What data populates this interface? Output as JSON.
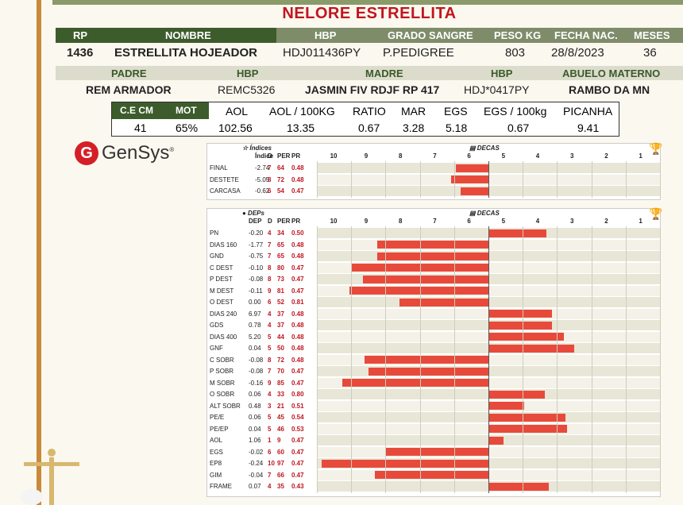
{
  "title": "NELORE ESTRELLITA",
  "main_header": [
    "RP",
    "NOMBRE",
    "HBP",
    "GRADO SANGRE",
    "PESO KG",
    "FECHA NAC.",
    "MESES"
  ],
  "main_values": {
    "rp": "1436",
    "nombre": "ESTRELLITA HOJEADOR",
    "hbp": "HDJ011436PY",
    "grado": "P.PEDIGREE",
    "peso": "803",
    "fecha": "28/8/2023",
    "meses": "36"
  },
  "parent_header": [
    "PADRE",
    "HBP",
    "MADRE",
    "HBP",
    "ABUELO MATERNO"
  ],
  "parent_values": {
    "padre": "REM ARMADOR",
    "padre_hbp": "REMC5326",
    "madre": "JASMIN FIV RDJF RP 417",
    "madre_hbp": "HDJ*0417PY",
    "abuelo": "RAMBO DA MN"
  },
  "stats_header": [
    "C.E CM",
    "MOT",
    "AOL",
    "AOL / 100KG",
    "RATIO",
    "MAR",
    "EGS",
    "EGS / 100kg",
    "PICANHA"
  ],
  "stats_values": [
    "41",
    "65%",
    "102.56",
    "13.35",
    "0.67",
    "3.28",
    "5.18",
    "0.67",
    "9.41"
  ],
  "logo": {
    "text": "GenSys",
    "reg": "®"
  },
  "indices": {
    "caption": "Índices",
    "decas_label": "DECAS",
    "columns": [
      "Índice",
      "D",
      "PER",
      "PR"
    ],
    "ticks": [
      "10",
      "9",
      "8",
      "7",
      "6",
      "5",
      "4",
      "3",
      "2",
      "1"
    ],
    "rows": [
      {
        "name": "FINAL",
        "val": "-2.74",
        "d": "7",
        "per": "64",
        "pr": "0.48",
        "bar": -0.64
      },
      {
        "name": "DESTETE",
        "val": "-5.05",
        "d": "8",
        "per": "72",
        "pr": "0.48",
        "bar": -0.72
      },
      {
        "name": "CARCASA",
        "val": "-0.62",
        "d": "6",
        "per": "54",
        "pr": "0.47",
        "bar": -0.54
      }
    ]
  },
  "deps": {
    "caption": "DEPs",
    "decas_label": "DECAS",
    "columns": [
      "DEP",
      "D",
      "PER",
      "PR"
    ],
    "ticks": [
      "10",
      "9",
      "8",
      "7",
      "6",
      "5",
      "4",
      "3",
      "2",
      "1"
    ],
    "rows": [
      {
        "name": "PN",
        "val": "-0.20",
        "d": "4",
        "per": "34",
        "pr": "0.50",
        "bar": 0.34
      },
      {
        "name": "DIAS 160",
        "val": "-1.77",
        "d": "7",
        "per": "65",
        "pr": "0.48",
        "bar": -0.65
      },
      {
        "name": "GND",
        "val": "-0.75",
        "d": "7",
        "per": "65",
        "pr": "0.48",
        "bar": -0.65
      },
      {
        "name": "C DEST",
        "val": "-0.10",
        "d": "8",
        "per": "80",
        "pr": "0.47",
        "bar": -0.8
      },
      {
        "name": "P DEST",
        "val": "-0.08",
        "d": "8",
        "per": "73",
        "pr": "0.47",
        "bar": -0.73
      },
      {
        "name": "M DEST",
        "val": "-0.11",
        "d": "9",
        "per": "81",
        "pr": "0.47",
        "bar": -0.81
      },
      {
        "name": "O DEST",
        "val": "0.00",
        "d": "6",
        "per": "52",
        "pr": "0.81",
        "bar": -0.52
      },
      {
        "name": "DIAS 240",
        "val": "6.97",
        "d": "4",
        "per": "37",
        "pr": "0.48",
        "bar": 0.37
      },
      {
        "name": "GDS",
        "val": "0.78",
        "d": "4",
        "per": "37",
        "pr": "0.48",
        "bar": 0.37
      },
      {
        "name": "DIAS 400",
        "val": "5.20",
        "d": "5",
        "per": "44",
        "pr": "0.48",
        "bar": 0.44
      },
      {
        "name": "GNF",
        "val": "0.04",
        "d": "5",
        "per": "50",
        "pr": "0.48",
        "bar": 0.5
      },
      {
        "name": "C SOBR",
        "val": "-0.08",
        "d": "8",
        "per": "72",
        "pr": "0.48",
        "bar": -0.72
      },
      {
        "name": "P SOBR",
        "val": "-0.08",
        "d": "7",
        "per": "70",
        "pr": "0.47",
        "bar": -0.7
      },
      {
        "name": "M SOBR",
        "val": "-0.16",
        "d": "9",
        "per": "85",
        "pr": "0.47",
        "bar": -0.85
      },
      {
        "name": "O SOBR",
        "val": "0.06",
        "d": "4",
        "per": "33",
        "pr": "0.80",
        "bar": 0.33
      },
      {
        "name": "ALT SOBR",
        "val": "0.48",
        "d": "3",
        "per": "21",
        "pr": "0.51",
        "bar": 0.21
      },
      {
        "name": "PE/E",
        "val": "0.06",
        "d": "5",
        "per": "45",
        "pr": "0.54",
        "bar": 0.45
      },
      {
        "name": "PE/EP",
        "val": "0.04",
        "d": "5",
        "per": "46",
        "pr": "0.53",
        "bar": 0.46
      },
      {
        "name": "AOL",
        "val": "1.06",
        "d": "1",
        "per": "9",
        "pr": "0.47",
        "bar": 0.09
      },
      {
        "name": "EGS",
        "val": "-0.02",
        "d": "6",
        "per": "60",
        "pr": "0.47",
        "bar": -0.6
      },
      {
        "name": "EP8",
        "val": "-0.24",
        "d": "10",
        "per": "97",
        "pr": "0.47",
        "bar": -0.97
      },
      {
        "name": "GIM",
        "val": "-0.04",
        "d": "7",
        "per": "66",
        "pr": "0.47",
        "bar": -0.66
      },
      {
        "name": "FRAME",
        "val": "0.07",
        "d": "4",
        "per": "35",
        "pr": "0.43",
        "bar": 0.35
      }
    ]
  },
  "colors": {
    "accent": "#c0161f",
    "green": "#3a5a2a",
    "bar": "#e74a3b"
  }
}
